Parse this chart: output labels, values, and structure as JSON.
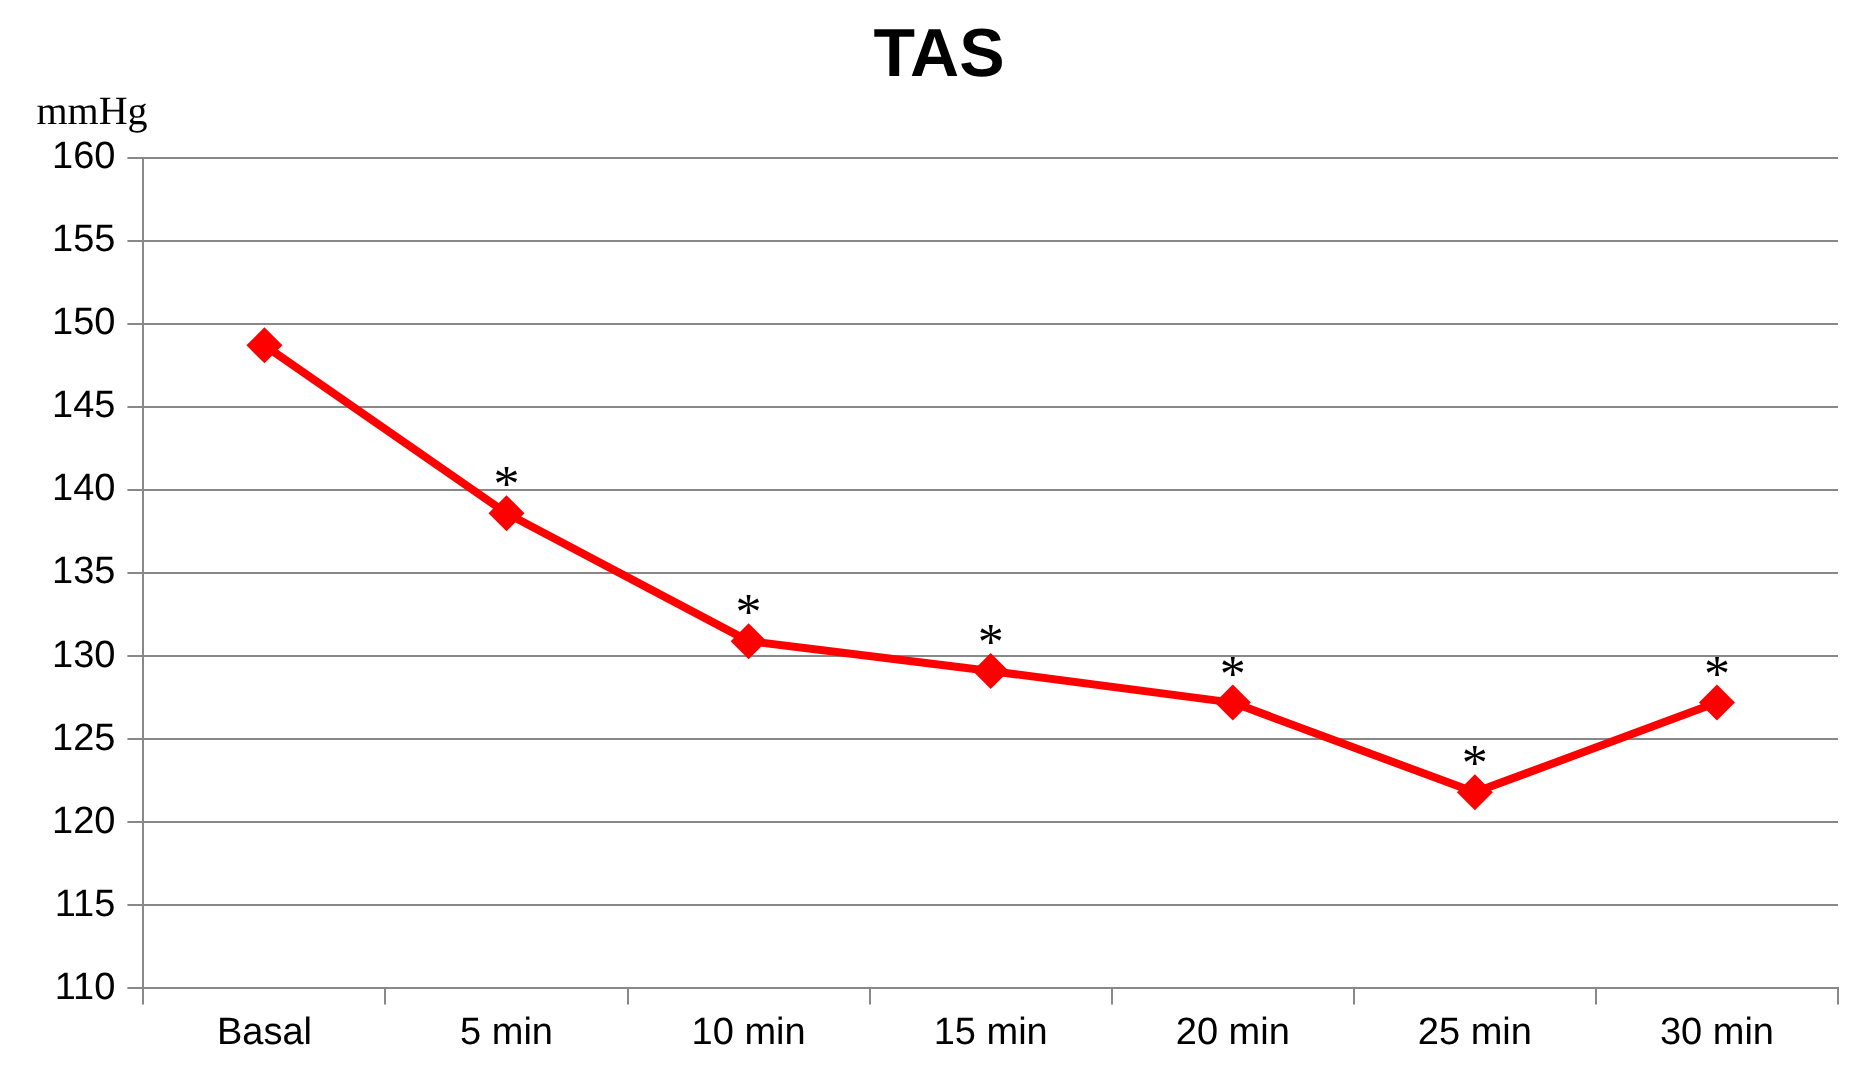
{
  "chart_data": {
    "type": "line",
    "title": "TAS",
    "ylabel": "mmHg",
    "categories": [
      "Basal",
      "5 min",
      "10 min",
      "15 min",
      "20 min",
      "25 min",
      "30 min"
    ],
    "series": [
      {
        "color": "#ff0000",
        "values": [
          148.7,
          138.6,
          130.9,
          129.1,
          127.2,
          121.8,
          127.2
        ]
      }
    ],
    "ylim": [
      110,
      160
    ],
    "yticks": [
      110,
      115,
      120,
      125,
      130,
      135,
      140,
      145,
      150,
      155,
      160
    ],
    "grid": "y",
    "legend": false,
    "marker": "diamond",
    "line_style": "solid",
    "annotations": [
      {
        "text": "*",
        "x": "5 min",
        "y": 138.6
      },
      {
        "text": "*",
        "x": "10 min",
        "y": 130.9
      },
      {
        "text": "*",
        "x": "15 min",
        "y": 129.1
      },
      {
        "text": "*",
        "x": "20 min",
        "y": 127.2
      },
      {
        "text": "*",
        "x": "25 min",
        "y": 121.8
      },
      {
        "text": "*",
        "x": "30 min",
        "y": 127.2
      }
    ]
  }
}
